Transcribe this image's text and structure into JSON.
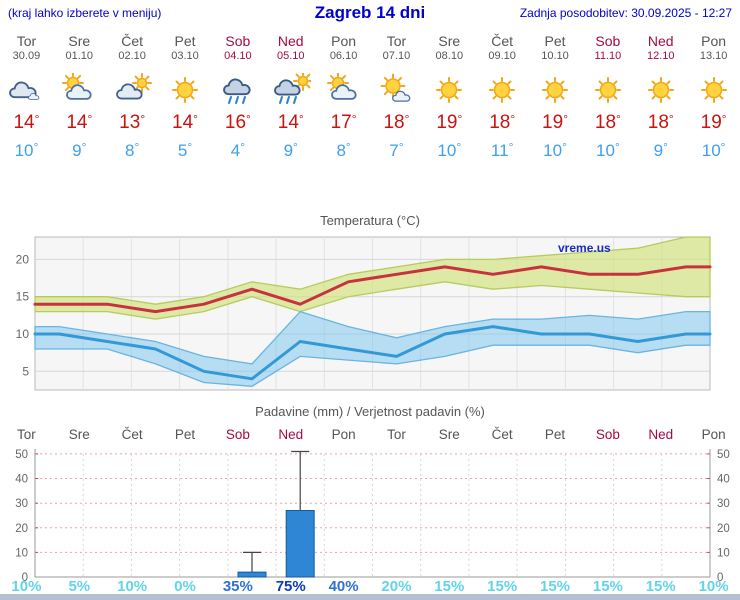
{
  "header": {
    "left_note": "(kraj lahko izberete v meniju)",
    "title": "Zagreb 14 dni",
    "updated": "Zadnja posodobitev: 30.09.2025 - 12:27"
  },
  "units": {
    "degree": "°",
    "percent": "%"
  },
  "watermark": "vreme.us",
  "days": [
    {
      "name": "Tor",
      "date": "30.09",
      "weekend": false,
      "icon": "cloudy",
      "tmax": 14,
      "tmin": 10
    },
    {
      "name": "Sre",
      "date": "01.10",
      "weekend": false,
      "icon": "partly-sunny",
      "tmax": 14,
      "tmin": 9
    },
    {
      "name": "Čet",
      "date": "02.10",
      "weekend": false,
      "icon": "mostly-cloudy",
      "tmax": 13,
      "tmin": 8
    },
    {
      "name": "Pet",
      "date": "03.10",
      "weekend": false,
      "icon": "sunny",
      "tmax": 14,
      "tmin": 5
    },
    {
      "name": "Sob",
      "date": "04.10",
      "weekend": true,
      "icon": "rain",
      "tmax": 16,
      "tmin": 4
    },
    {
      "name": "Ned",
      "date": "05.10",
      "weekend": true,
      "icon": "rain-sun",
      "tmax": 14,
      "tmin": 9
    },
    {
      "name": "Pon",
      "date": "06.10",
      "weekend": false,
      "icon": "partly-sunny",
      "tmax": 17,
      "tmin": 8
    },
    {
      "name": "Tor",
      "date": "07.10",
      "weekend": false,
      "icon": "mostly-sunny",
      "tmax": 18,
      "tmin": 7
    },
    {
      "name": "Sre",
      "date": "08.10",
      "weekend": false,
      "icon": "sunny",
      "tmax": 19,
      "tmin": 10
    },
    {
      "name": "Čet",
      "date": "09.10",
      "weekend": false,
      "icon": "sunny",
      "tmax": 18,
      "tmin": 11
    },
    {
      "name": "Pet",
      "date": "10.10",
      "weekend": false,
      "icon": "sunny",
      "tmax": 19,
      "tmin": 10
    },
    {
      "name": "Sob",
      "date": "11.10",
      "weekend": true,
      "icon": "sunny",
      "tmax": 18,
      "tmin": 10
    },
    {
      "name": "Ned",
      "date": "12.10",
      "weekend": true,
      "icon": "sunny",
      "tmax": 18,
      "tmin": 9
    },
    {
      "name": "Pon",
      "date": "13.10",
      "weekend": false,
      "icon": "sunny",
      "tmax": 19,
      "tmin": 10
    }
  ],
  "chart_data": [
    {
      "type": "line",
      "title": "Temperatura (°C)",
      "categories": [
        "Tor",
        "Sre",
        "Čet",
        "Pet",
        "Sob",
        "Ned",
        "Pon",
        "Tor",
        "Sre",
        "Čet",
        "Pet",
        "Sob",
        "Ned",
        "Pon"
      ],
      "series": [
        {
          "name": "max temp",
          "color": "#c8323e",
          "values": [
            14,
            14,
            13,
            14,
            16,
            14,
            17,
            18,
            19,
            18,
            19,
            18,
            18,
            19
          ]
        },
        {
          "name": "min temp",
          "color": "#3399d6",
          "values": [
            10,
            9,
            8,
            5,
            4,
            9,
            8,
            7,
            10,
            11,
            10,
            10,
            9,
            10
          ]
        }
      ],
      "bands": [
        {
          "series": "max",
          "fill": "rgba(208,226,120,0.65)",
          "edge": "#b6cb5e",
          "upper": [
            15,
            15,
            14,
            15,
            17,
            16,
            18,
            19,
            20,
            20,
            20.5,
            21,
            21.5,
            23
          ],
          "lower": [
            13,
            13,
            12,
            13,
            15,
            13,
            15,
            16,
            17,
            16,
            16.5,
            16,
            15.5,
            15
          ]
        },
        {
          "series": "min",
          "fill": "rgba(120,195,240,0.5)",
          "edge": "#69b4e2",
          "upper": [
            11,
            10,
            9,
            7,
            6,
            13,
            11,
            9.5,
            11,
            12,
            12,
            12.5,
            12,
            13
          ],
          "lower": [
            8,
            8,
            6,
            3.5,
            3,
            7,
            6.5,
            6,
            7,
            8.5,
            8.5,
            8.5,
            7.5,
            8.5
          ]
        }
      ],
      "ylim": [
        2.5,
        23
      ],
      "yticks": [
        5,
        10,
        15,
        20
      ],
      "grid": true,
      "legend_position": "none"
    },
    {
      "type": "bar",
      "title": "Padavine (mm) / Verjetnost padavin (%)",
      "categories": [
        "Tor",
        "Sre",
        "Čet",
        "Pet",
        "Sob",
        "Ned",
        "Pon",
        "Tor",
        "Sre",
        "Čet",
        "Pet",
        "Sob",
        "Ned",
        "Pon"
      ],
      "values": [
        0,
        0,
        0,
        0,
        2,
        27,
        0,
        0,
        0,
        0,
        0,
        0,
        0,
        0
      ],
      "whisker_max": [
        0,
        0,
        0,
        0,
        10,
        51,
        0,
        0,
        0,
        0,
        0,
        0,
        0,
        0
      ],
      "probabilities": [
        10,
        5,
        10,
        0,
        35,
        75,
        40,
        20,
        15,
        15,
        15,
        15,
        15,
        10
      ],
      "ylim": [
        0,
        52
      ],
      "yticks": [
        0,
        10,
        20,
        30,
        40,
        50
      ],
      "grid": true,
      "bar_color": "#2f86d4",
      "bar_border": "#155a9e",
      "prob_colors": {
        "high": "#0b3cbb",
        "mid": "#2f6fd6",
        "low": "#62d4e8"
      }
    }
  ]
}
